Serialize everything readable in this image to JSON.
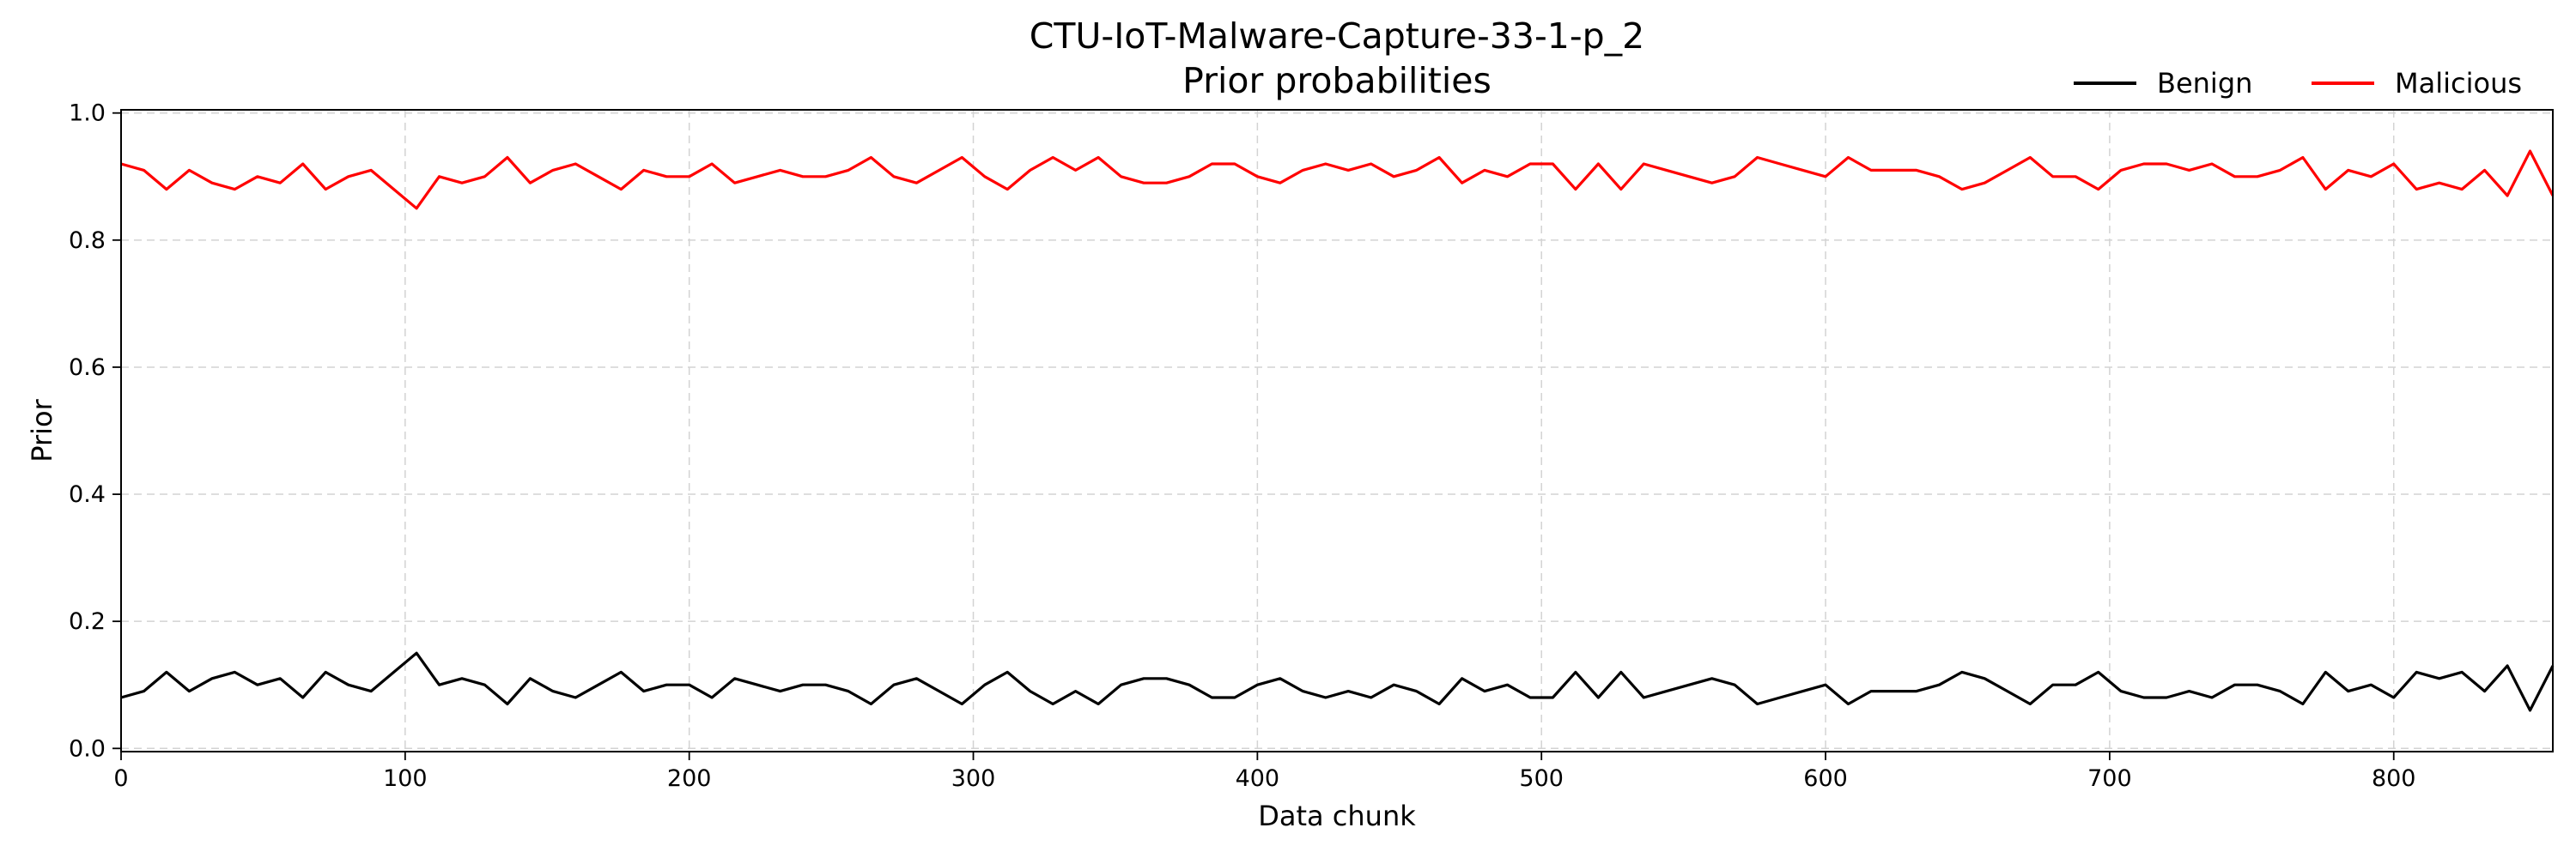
{
  "chart_data": {
    "type": "line",
    "title": "CTU-IoT-Malware-Capture-33-1-p_2",
    "subtitle": "Prior probabilities",
    "xlabel": "Data chunk",
    "ylabel": "Prior",
    "xlim": [
      0,
      856
    ],
    "ylim": [
      -0.005,
      1.005
    ],
    "xticks": [
      0,
      100,
      200,
      300,
      400,
      500,
      600,
      700,
      800
    ],
    "yticks": [
      0.0,
      0.2,
      0.4,
      0.6,
      0.8,
      1.0
    ],
    "ytick_labels": [
      "0.0",
      "0.2",
      "0.4",
      "0.6",
      "0.8",
      "1.0"
    ],
    "grid": true,
    "legend_position": "top-right",
    "x_start": 0,
    "x_step": 8,
    "series": [
      {
        "name": "Benign",
        "color": "#000000",
        "values": [
          0.08,
          0.09,
          0.12,
          0.09,
          0.11,
          0.12,
          0.1,
          0.11,
          0.08,
          0.12,
          0.1,
          0.09,
          0.12,
          0.15,
          0.1,
          0.11,
          0.1,
          0.07,
          0.11,
          0.09,
          0.08,
          0.1,
          0.12,
          0.09,
          0.1,
          0.1,
          0.08,
          0.11,
          0.1,
          0.09,
          0.1,
          0.1,
          0.09,
          0.07,
          0.1,
          0.11,
          0.09,
          0.07,
          0.1,
          0.12,
          0.09,
          0.07,
          0.09,
          0.07,
          0.1,
          0.11,
          0.11,
          0.1,
          0.08,
          0.08,
          0.1,
          0.11,
          0.09,
          0.08,
          0.09,
          0.08,
          0.1,
          0.09,
          0.07,
          0.11,
          0.09,
          0.1,
          0.08,
          0.08,
          0.12,
          0.08,
          0.12,
          0.08,
          0.09,
          0.1,
          0.11,
          0.1,
          0.07,
          0.08,
          0.09,
          0.1,
          0.07,
          0.09,
          0.09,
          0.09,
          0.1,
          0.12,
          0.11,
          0.09,
          0.07,
          0.1,
          0.1,
          0.12,
          0.09,
          0.08,
          0.08,
          0.09,
          0.08,
          0.1,
          0.1,
          0.09,
          0.07,
          0.12,
          0.09,
          0.1,
          0.08,
          0.12,
          0.11,
          0.12,
          0.09,
          0.13,
          0.06,
          0.13
        ]
      },
      {
        "name": "Malicious",
        "color": "#ff0000",
        "values": [
          0.92,
          0.91,
          0.88,
          0.91,
          0.89,
          0.88,
          0.9,
          0.89,
          0.92,
          0.88,
          0.9,
          0.91,
          0.88,
          0.85,
          0.9,
          0.89,
          0.9,
          0.93,
          0.89,
          0.91,
          0.92,
          0.9,
          0.88,
          0.91,
          0.9,
          0.9,
          0.92,
          0.89,
          0.9,
          0.91,
          0.9,
          0.9,
          0.91,
          0.93,
          0.9,
          0.89,
          0.91,
          0.93,
          0.9,
          0.88,
          0.91,
          0.93,
          0.91,
          0.93,
          0.9,
          0.89,
          0.89,
          0.9,
          0.92,
          0.92,
          0.9,
          0.89,
          0.91,
          0.92,
          0.91,
          0.92,
          0.9,
          0.91,
          0.93,
          0.89,
          0.91,
          0.9,
          0.92,
          0.92,
          0.88,
          0.92,
          0.88,
          0.92,
          0.91,
          0.9,
          0.89,
          0.9,
          0.93,
          0.92,
          0.91,
          0.9,
          0.93,
          0.91,
          0.91,
          0.91,
          0.9,
          0.88,
          0.89,
          0.91,
          0.93,
          0.9,
          0.9,
          0.88,
          0.91,
          0.92,
          0.92,
          0.91,
          0.92,
          0.9,
          0.9,
          0.91,
          0.93,
          0.88,
          0.91,
          0.9,
          0.92,
          0.88,
          0.89,
          0.88,
          0.91,
          0.87,
          0.94,
          0.87
        ]
      }
    ]
  }
}
